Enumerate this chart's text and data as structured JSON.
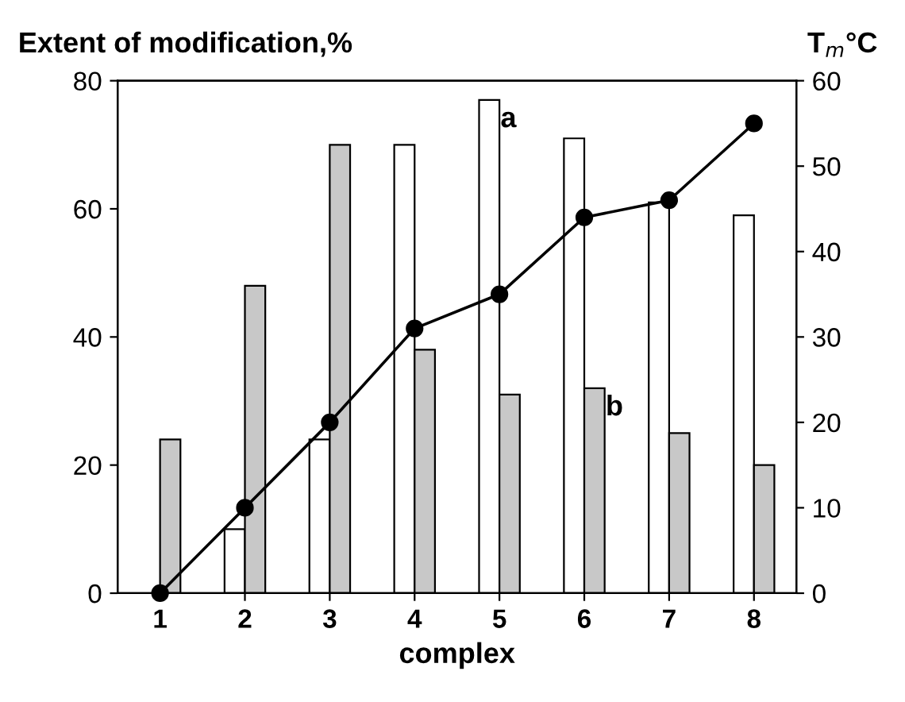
{
  "chart_data": {
    "type": "bar",
    "xlabel": "complex",
    "ylabel": "Extent of modification,%",
    "y2label": "T$_{m}$°C",
    "categories": [
      "1",
      "2",
      "3",
      "4",
      "5",
      "6",
      "7",
      "8"
    ],
    "series": [
      {
        "name": "a",
        "color": "#ffffff",
        "values": [
          null,
          10,
          24,
          70,
          77,
          71,
          61,
          59
        ]
      },
      {
        "name": "b",
        "color": "#c8c8c8",
        "values": [
          24,
          48,
          70,
          38,
          31,
          32,
          25,
          20
        ]
      },
      {
        "type": "line",
        "axis": "y2",
        "color": "#000000",
        "values": [
          0,
          10,
          20,
          31,
          35,
          44,
          46,
          55
        ]
      }
    ],
    "ylim": [
      0,
      80
    ],
    "yticks": [
      0,
      20,
      40,
      60,
      80
    ],
    "y2lim": [
      0,
      60
    ],
    "y2ticks": [
      0,
      10,
      20,
      30,
      40,
      50,
      60
    ],
    "marker": "circle",
    "line_style": "solid",
    "grid": false,
    "legend": false
  }
}
